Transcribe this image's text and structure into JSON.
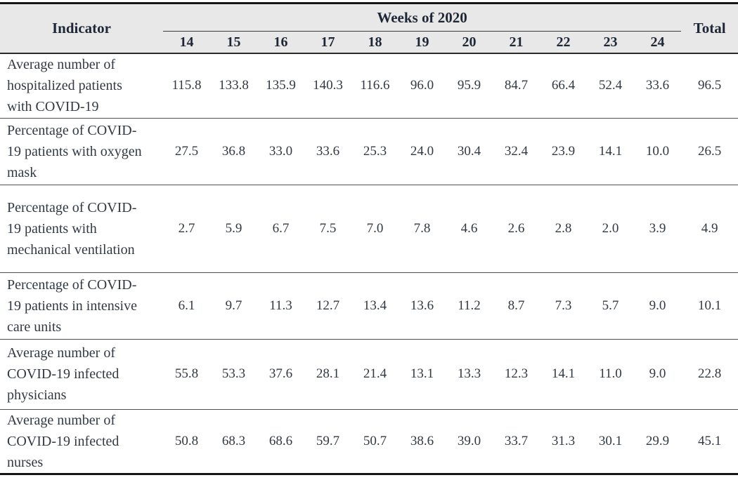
{
  "colors": {
    "header_background": "#e8e8e8",
    "rule_color": "#161616",
    "header_text": "#1d2735",
    "body_text": "#313943"
  },
  "table": {
    "header": {
      "indicator_label": "Indicator",
      "weeks_group_label": "Weeks of 2020",
      "week_labels": [
        "14",
        "15",
        "16",
        "17",
        "18",
        "19",
        "20",
        "21",
        "22",
        "23",
        "24"
      ],
      "total_label": "Total"
    },
    "rows": [
      {
        "indicator": "Average number of hospitalized patients with COVID-19",
        "values": [
          "115.8",
          "133.8",
          "135.9",
          "140.3",
          "116.6",
          "96.0",
          "95.9",
          "84.7",
          "66.4",
          "52.4",
          "33.6"
        ],
        "total": "96.5"
      },
      {
        "indicator": "Percentage of COVID-19 patients with oxygen mask",
        "values": [
          "27.5",
          "36.8",
          "33.0",
          "33.6",
          "25.3",
          "24.0",
          "30.4",
          "32.4",
          "23.9",
          "14.1",
          "10.0"
        ],
        "total": "26.5"
      },
      {
        "indicator": "Percentage of COVID-19 patients with mechanical ventilation",
        "values": [
          "2.7",
          "5.9",
          "6.7",
          "7.5",
          "7.0",
          "7.8",
          "4.6",
          "2.6",
          "2.8",
          "2.0",
          "3.9"
        ],
        "total": "4.9"
      },
      {
        "indicator": "Percentage of COVID-19 patients in intensive care units",
        "values": [
          "6.1",
          "9.7",
          "11.3",
          "12.7",
          "13.4",
          "13.6",
          "11.2",
          "8.7",
          "7.3",
          "5.7",
          "9.0"
        ],
        "total": "10.1"
      },
      {
        "indicator": "Average number of COVID-19 infected physicians",
        "values": [
          "55.8",
          "53.3",
          "37.6",
          "28.1",
          "21.4",
          "13.1",
          "13.3",
          "12.3",
          "14.1",
          "11.0",
          "9.0"
        ],
        "total": "22.8"
      },
      {
        "indicator": "Average number of COVID-19 infected nurses",
        "values": [
          "50.8",
          "68.3",
          "68.6",
          "59.7",
          "50.7",
          "38.6",
          "39.0",
          "33.7",
          "31.3",
          "30.1",
          "29.9"
        ],
        "total": "45.1"
      }
    ]
  }
}
